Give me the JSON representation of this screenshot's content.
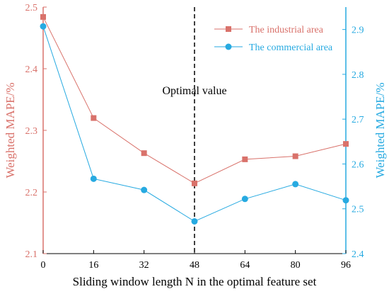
{
  "chart_data": {
    "type": "line",
    "xlabel": "Sliding window length N in the optimal feature set",
    "ylabel_left": "Weighted MAPE/%",
    "ylabel_right": "Weighted MAPE/%",
    "x": [
      0,
      16,
      32,
      48,
      64,
      80,
      96
    ],
    "xlim": [
      0,
      96
    ],
    "x_ticks": [
      "0",
      "16",
      "32",
      "48",
      "64",
      "80",
      "96"
    ],
    "ylim_left": [
      2.1,
      2.5
    ],
    "y_ticks_left": [
      "2.1",
      "2.2",
      "2.3",
      "2.4",
      "2.5"
    ],
    "ylim_right": [
      2.4,
      2.95
    ],
    "y_ticks_right": [
      "2.4",
      "2.5",
      "2.6",
      "2.7",
      "2.8",
      "2.9"
    ],
    "series": [
      {
        "name": "The industrial area",
        "axis": "left",
        "marker": "square",
        "color": "#d9726b",
        "values": [
          2.484,
          2.32,
          2.263,
          2.214,
          2.253,
          2.258,
          2.278
        ]
      },
      {
        "name": "The commercial area",
        "axis": "right",
        "marker": "circle",
        "color": "#27aae1",
        "values": [
          2.907,
          2.567,
          2.542,
          2.472,
          2.522,
          2.555,
          2.519
        ]
      }
    ],
    "annotation": {
      "text": "Optimal value",
      "x": 48
    },
    "legend_position": "top-right",
    "grid": false,
    "colors": {
      "left_axis": "#d9726b",
      "right_axis": "#27aae1",
      "axis_line": "#000000"
    }
  }
}
